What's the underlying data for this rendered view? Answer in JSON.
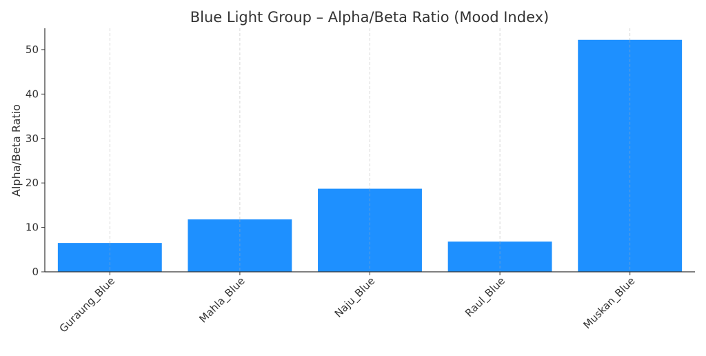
{
  "chart_data": {
    "type": "bar",
    "title": "Blue Light Group – Alpha/Beta Ratio (Mood Index)",
    "xlabel": "",
    "ylabel": "Alpha/Beta Ratio",
    "categories": [
      "Guraung_Blue",
      "Mahla_Blue",
      "Naju_Blue",
      "Raul_Blue",
      "Muskan_Blue"
    ],
    "values": [
      6.5,
      11.8,
      18.7,
      6.8,
      52.2
    ],
    "ylim": [
      0,
      54.8
    ],
    "yticks": [
      0,
      10,
      20,
      30,
      40,
      50
    ],
    "grid": "x-only dashed",
    "legend": "none",
    "bar_color": "#1e90ff"
  }
}
